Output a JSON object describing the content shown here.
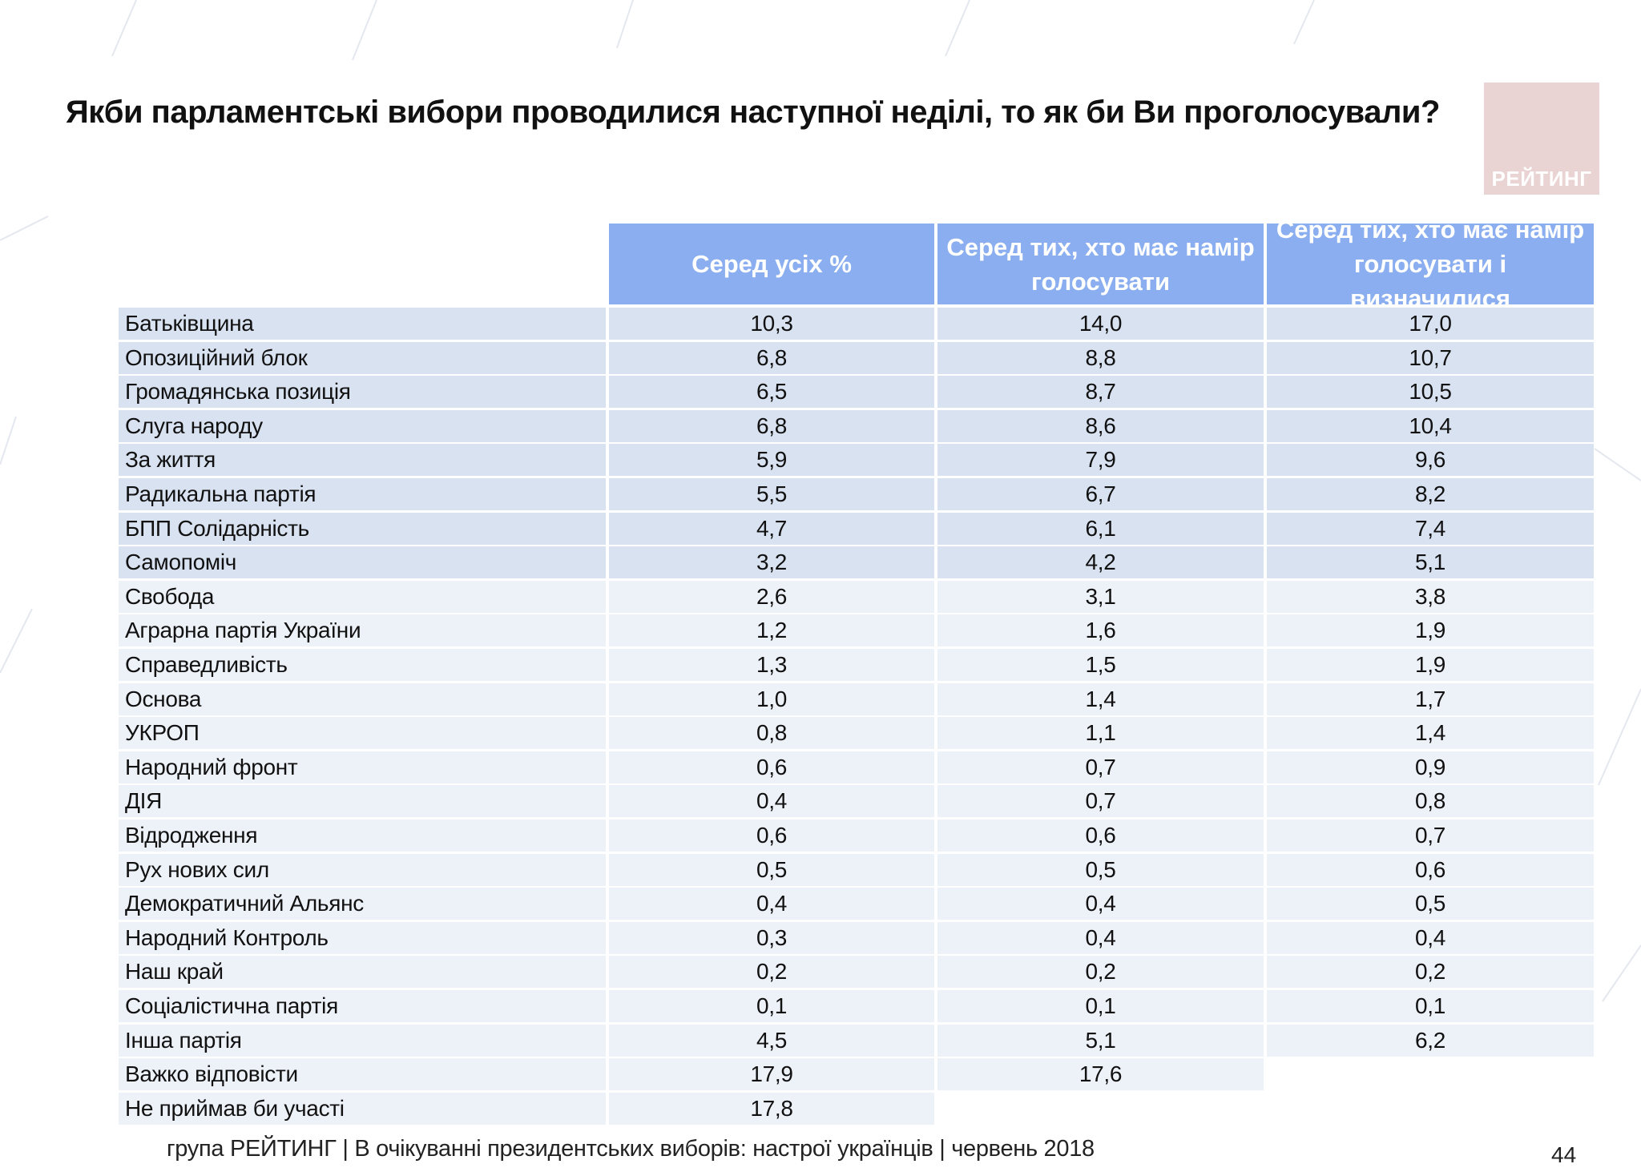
{
  "title": "Якби парламентські вибори проводилися наступної неділі, то як би Ви проголосували?",
  "logo_text": "РЕЙТИНГ",
  "chart_data": {
    "type": "table",
    "title": "Якби парламентські вибори проводилися наступної неділі, то як би Ви проголосували?",
    "columns": [
      "Серед усіх %",
      "Серед тих, хто має намір голосувати",
      "Серед тих, хто має намір голосувати і визначилися"
    ],
    "rows": [
      {
        "party": "Батьківщина",
        "values": [
          "10,3",
          "14,0",
          "17,0"
        ]
      },
      {
        "party": "Опозиційний блок",
        "values": [
          "6,8",
          "8,8",
          "10,7"
        ]
      },
      {
        "party": "Громадянська позиція",
        "values": [
          "6,5",
          "8,7",
          "10,5"
        ]
      },
      {
        "party": "Слуга народу",
        "values": [
          "6,8",
          "8,6",
          "10,4"
        ]
      },
      {
        "party": "За життя",
        "values": [
          "5,9",
          "7,9",
          "9,6"
        ]
      },
      {
        "party": "Радикальна партія",
        "values": [
          "5,5",
          "6,7",
          "8,2"
        ]
      },
      {
        "party": "БПП Солідарність",
        "values": [
          "4,7",
          "6,1",
          "7,4"
        ]
      },
      {
        "party": "Самопоміч",
        "values": [
          "3,2",
          "4,2",
          "5,1"
        ]
      },
      {
        "party": "Свобода",
        "values": [
          "2,6",
          "3,1",
          "3,8"
        ]
      },
      {
        "party": "Аграрна партія України",
        "values": [
          "1,2",
          "1,6",
          "1,9"
        ]
      },
      {
        "party": "Справедливість",
        "values": [
          "1,3",
          "1,5",
          "1,9"
        ]
      },
      {
        "party": "Основа",
        "values": [
          "1,0",
          "1,4",
          "1,7"
        ]
      },
      {
        "party": "УКРОП",
        "values": [
          "0,8",
          "1,1",
          "1,4"
        ]
      },
      {
        "party": "Народний фронт",
        "values": [
          "0,6",
          "0,7",
          "0,9"
        ]
      },
      {
        "party": "ДІЯ",
        "values": [
          "0,4",
          "0,7",
          "0,8"
        ]
      },
      {
        "party": "Відродження",
        "values": [
          "0,6",
          "0,6",
          "0,7"
        ]
      },
      {
        "party": "Рух нових сил",
        "values": [
          "0,5",
          "0,5",
          "0,6"
        ]
      },
      {
        "party": "Демократичний Альянс",
        "values": [
          "0,4",
          "0,4",
          "0,5"
        ]
      },
      {
        "party": "Народний Контроль",
        "values": [
          "0,3",
          "0,4",
          "0,4"
        ]
      },
      {
        "party": "Наш край",
        "values": [
          "0,2",
          "0,2",
          "0,2"
        ]
      },
      {
        "party": "Соціалістична партія",
        "values": [
          "0,1",
          "0,1",
          "0,1"
        ]
      },
      {
        "party": "Інша партія",
        "values": [
          "4,5",
          "5,1",
          "6,2"
        ]
      },
      {
        "party": "Важко відповісти",
        "values": [
          "17,9",
          "17,6",
          null
        ]
      },
      {
        "party": "Не приймав би участі",
        "values": [
          "17,8",
          null,
          null
        ]
      }
    ]
  },
  "footer": {
    "text": "група РЕЙТИНГ  | В очікуванні президентських виборів: настрої українців |  червень 2018",
    "page_number": "44"
  },
  "colors": {
    "header_bg": "#8aaeef",
    "row_dark": "#d9e2f1",
    "row_light": "#edf1f8",
    "logo_bg": "#e9d3d3"
  }
}
